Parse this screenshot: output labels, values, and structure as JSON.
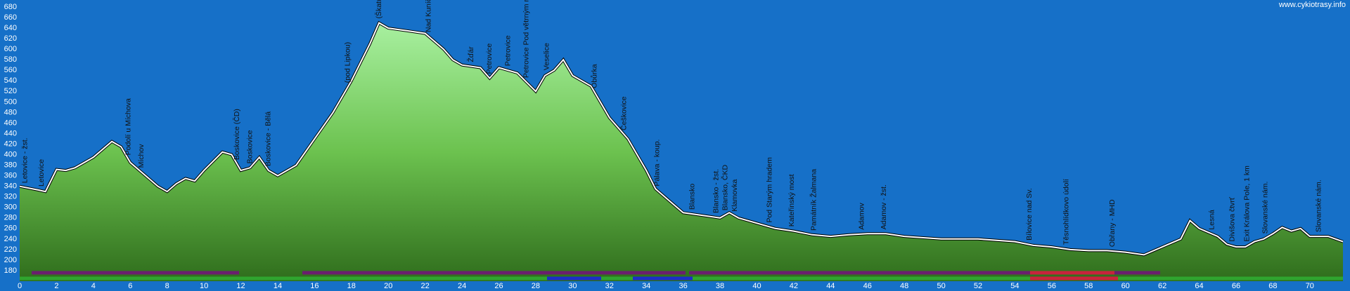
{
  "chart_data": {
    "type": "area",
    "watermark": "www.cykiotrasy.info",
    "x": [
      0,
      1,
      1.4,
      2,
      2.5,
      3,
      4,
      5,
      5.5,
      6,
      7,
      7.5,
      8,
      8.5,
      9,
      9.5,
      10,
      11,
      11.5,
      12,
      12.5,
      13,
      13.5,
      14,
      15,
      16,
      17,
      18,
      19,
      19.5,
      20,
      21,
      22,
      23,
      23.5,
      24,
      25,
      25.5,
      26,
      27,
      28,
      28.5,
      29,
      29.5,
      30,
      31,
      32,
      33,
      34,
      34.5,
      35,
      36,
      37,
      38,
      38.5,
      39,
      40,
      41,
      42,
      43,
      44,
      45,
      46,
      47,
      48,
      50,
      52,
      54,
      55,
      56,
      57,
      58,
      59,
      60,
      61,
      62,
      63,
      63.5,
      64,
      65,
      65.5,
      66,
      66.5,
      67,
      67.5,
      68,
      68.5,
      69,
      69.5,
      70,
      71,
      71.8
    ],
    "values": [
      340,
      333,
      330,
      372,
      370,
      375,
      395,
      425,
      415,
      385,
      355,
      340,
      330,
      345,
      355,
      350,
      370,
      405,
      400,
      370,
      375,
      395,
      370,
      360,
      380,
      430,
      480,
      540,
      610,
      650,
      640,
      635,
      630,
      600,
      580,
      570,
      565,
      545,
      565,
      555,
      520,
      550,
      560,
      580,
      550,
      530,
      470,
      430,
      370,
      335,
      320,
      290,
      285,
      280,
      290,
      280,
      270,
      260,
      255,
      248,
      245,
      248,
      250,
      250,
      245,
      240,
      240,
      235,
      228,
      225,
      220,
      218,
      218,
      215,
      210,
      225,
      240,
      275,
      260,
      245,
      230,
      225,
      225,
      235,
      240,
      250,
      262,
      255,
      260,
      245,
      245,
      235
    ],
    "xlim": [
      0,
      71.8
    ],
    "ylim": [
      160,
      680
    ],
    "xticks": [
      0,
      2,
      4,
      6,
      8,
      10,
      12,
      14,
      16,
      18,
      20,
      22,
      24,
      26,
      28,
      30,
      32,
      34,
      36,
      38,
      40,
      42,
      44,
      46,
      48,
      50,
      52,
      54,
      56,
      58,
      60,
      62,
      64,
      66,
      68,
      70
    ],
    "yticks": [
      180,
      200,
      220,
      240,
      260,
      280,
      300,
      320,
      340,
      360,
      380,
      400,
      420,
      440,
      460,
      480,
      500,
      520,
      540,
      560,
      580,
      600,
      620,
      640,
      660,
      680
    ],
    "annotations": [
      {
        "x": 0.3,
        "text": "Letovice - žst."
      },
      {
        "x": 1.2,
        "text": "Letovice"
      },
      {
        "x": 5.9,
        "text": "Podolí u Míchova"
      },
      {
        "x": 6.6,
        "text": "Míchov"
      },
      {
        "x": 11.8,
        "text": "Boskovice (ČD)"
      },
      {
        "x": 12.5,
        "text": "Boskovice"
      },
      {
        "x": 13.5,
        "text": "Boskovice - Bělá"
      },
      {
        "x": 17.8,
        "text": "(pod Lipkou)"
      },
      {
        "x": 19.5,
        "text": "(Škatulec)"
      },
      {
        "x": 22.2,
        "text": "Nad Kuníčkami"
      },
      {
        "x": 24.5,
        "text": "Žďár"
      },
      {
        "x": 25.5,
        "text": "Petrovice"
      },
      {
        "x": 26.5,
        "text": "Petrovice"
      },
      {
        "x": 27.5,
        "text": "Petrovice Pod větrným mlýnem"
      },
      {
        "x": 28.6,
        "text": "Veselice"
      },
      {
        "x": 31.2,
        "text": "Obůrka"
      },
      {
        "x": 32.8,
        "text": "Češkovice"
      },
      {
        "x": 34.6,
        "text": "Pálava - koup."
      },
      {
        "x": 36.5,
        "text": "Blansko"
      },
      {
        "x": 37.8,
        "text": "Blansko - žst."
      },
      {
        "x": 38.3,
        "text": "Blansko, ČKD"
      },
      {
        "x": 38.8,
        "text": "Klamovka"
      },
      {
        "x": 40.7,
        "text": "Pod Starým hradem"
      },
      {
        "x": 41.9,
        "text": "Kateřinský most"
      },
      {
        "x": 43.1,
        "text": "Památník Žalmana"
      },
      {
        "x": 45.7,
        "text": "Adamov"
      },
      {
        "x": 46.9,
        "text": "Adamov - žst."
      },
      {
        "x": 54.8,
        "text": "Bílovice nad Sv."
      },
      {
        "x": 56.8,
        "text": "Těsnohlídkovo údolí"
      },
      {
        "x": 59.3,
        "text": "Obřany - MHD"
      },
      {
        "x": 64.7,
        "text": "Lesná"
      },
      {
        "x": 65.8,
        "text": "Divišova čtvrť"
      },
      {
        "x": 66.6,
        "text": "Exit Králova Pole, 1 km"
      },
      {
        "x": 67.6,
        "text": "Slovanské nám."
      },
      {
        "x": 70.5,
        "text": "Slovanské nám."
      }
    ]
  }
}
